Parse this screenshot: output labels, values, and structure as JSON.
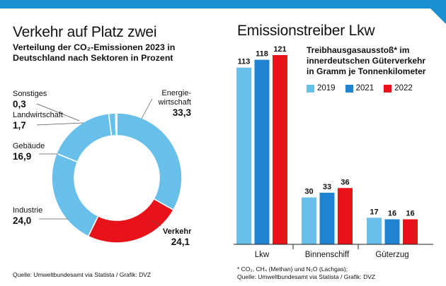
{
  "colors": {
    "accent": "#1a8fd0",
    "light_blue": "#68c0ea",
    "mid_blue": "#1f83d3",
    "red": "#e8121a"
  },
  "left": {
    "title": "Verkehr auf Platz zwei",
    "subtitle_line1": "Verteilung der CO₂-Emissionen 2023 in",
    "subtitle_line2": "Deutschland nach Sektoren in Prozent",
    "source": "Quelle: Umweltbundesamt via Statista / Grafik: DVZ"
  },
  "right": {
    "title": "Emissionstreiber Lkw",
    "legend_title_line1": "Treibhausgasausstoß* im",
    "legend_title_line2": "innerdeutschen Güterverkehr",
    "legend_title_line3": "in Gramm je Tonnenkilometer",
    "footnote": "* CO₂, CH₄ (Methan) und N₂O (Lachgas);",
    "source": "Quelle: Umweltbundesamt via Statista / Grafik: DVZ"
  },
  "chart_data": [
    {
      "type": "pie",
      "title": "Verkehr auf Platz zwei",
      "subtitle": "Verteilung der CO₂-Emissionen 2023 in Deutschland nach Sektoren in Prozent",
      "slices": [
        {
          "label_line1": "Energie-",
          "label_line2": "wirtschaft",
          "value": 33.3,
          "value_label": "33,3",
          "color": "#68c0ea"
        },
        {
          "label_line1": "Verkehr",
          "label_line2": "",
          "value": 24.1,
          "value_label": "24,1",
          "color": "#e8121a"
        },
        {
          "label_line1": "Industrie",
          "label_line2": "",
          "value": 24.0,
          "value_label": "24,0",
          "color": "#68c0ea"
        },
        {
          "label_line1": "Gebäude",
          "label_line2": "",
          "value": 16.9,
          "value_label": "16,9",
          "color": "#68c0ea"
        },
        {
          "label_line1": "Landwirtschaft",
          "label_line2": "",
          "value": 1.7,
          "value_label": "1,7",
          "color": "#68c0ea"
        },
        {
          "label_line1": "Sonstiges",
          "label_line2": "",
          "value": 0.3,
          "value_label": "0,3",
          "color": "#68c0ea"
        }
      ]
    },
    {
      "type": "bar",
      "title": "Emissionstreiber Lkw",
      "ylabel": "Treibhausgasausstoß* im innerdeutschen Güterverkehr in Gramm je Tonnenkilometer",
      "categories": [
        "Lkw",
        "Binnenschiff",
        "Güterzug"
      ],
      "series": [
        {
          "name": "2019",
          "values": [
            113,
            30,
            17
          ],
          "color": "#68c0ea"
        },
        {
          "name": "2021",
          "values": [
            118,
            33,
            16
          ],
          "color": "#1f83d3"
        },
        {
          "name": "2022",
          "values": [
            121,
            36,
            16
          ],
          "color": "#e8121a"
        }
      ],
      "ylim": [
        0,
        121
      ],
      "grid": false,
      "legend": "top"
    }
  ]
}
